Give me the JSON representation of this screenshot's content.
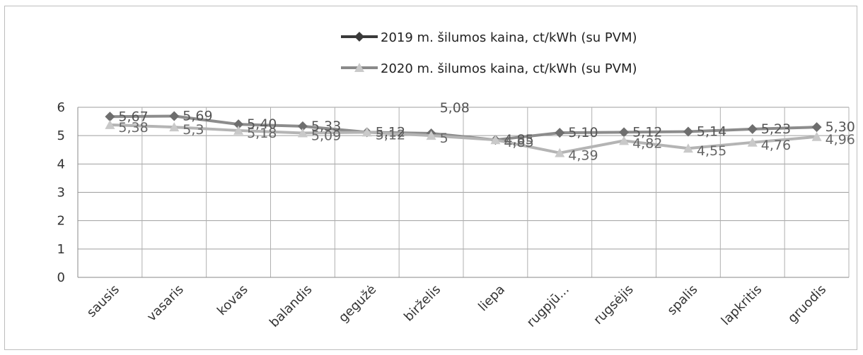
{
  "chart_data": {
    "type": "line",
    "title": "",
    "xlabel": "",
    "ylabel": "",
    "ylim": [
      0,
      6
    ],
    "yticks": [
      "0",
      "1",
      "2",
      "3",
      "4",
      "5",
      "6"
    ],
    "grid": true,
    "legend_position": "top-right",
    "categories": [
      "sausis",
      "vasaris",
      "kovas",
      "balandis",
      "gegužė",
      "birželis",
      "liepa",
      "rugpjū...",
      "rugsėjis",
      "spalis",
      "lapkritis",
      "gruodis"
    ],
    "series": [
      {
        "name": "2019 m. šilumos kaina, ct/kWh  (su PVM)",
        "color": "#8c8c8c",
        "marker": "diamond",
        "values": [
          5.67,
          5.69,
          5.4,
          5.33,
          5.12,
          5.08,
          4.85,
          5.1,
          5.12,
          5.14,
          5.23,
          5.3
        ],
        "labels": [
          "5,67",
          "5,69",
          "5,40",
          "5,33",
          "5,12",
          "5,08",
          "4,85",
          "5,10",
          "5,12",
          "5,14",
          "5,23",
          "5,30"
        ]
      },
      {
        "name": "2020 m. šilumos kaina, ct/kWh  (su PVM)",
        "color": "#b4b4b4",
        "marker": "triangle",
        "values": [
          5.38,
          5.3,
          5.18,
          5.09,
          5.12,
          5,
          4.85,
          4.39,
          4.82,
          4.55,
          4.76,
          4.96
        ],
        "labels": [
          "5,38",
          "5,3",
          "5,18",
          "5,09",
          "5,12",
          "5",
          "4,85",
          "4,39",
          "4,82",
          "4,55",
          "4,76",
          "4,96"
        ]
      }
    ]
  }
}
